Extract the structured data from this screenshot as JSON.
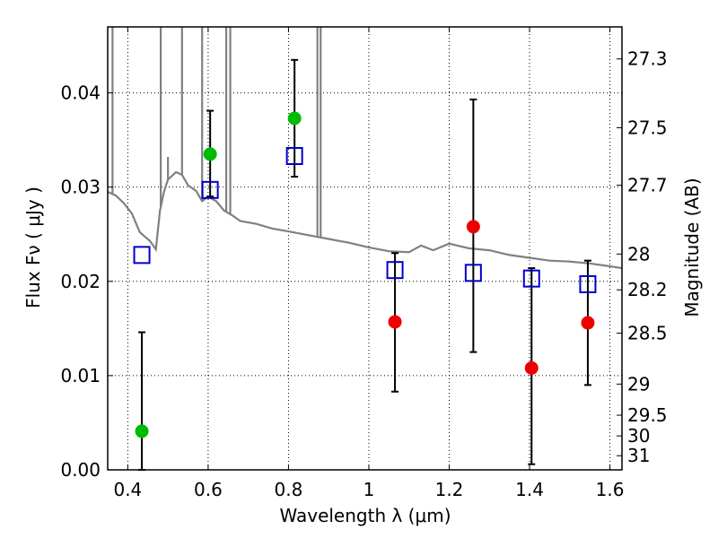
{
  "chart_data": {
    "type": "scatter",
    "xlabel": "Wavelength  λ (μm)",
    "ylabel": "Flux  Fν  ( μJy )",
    "ylabel_right": "Magnitude (AB)",
    "xlim": [
      0.35,
      1.63
    ],
    "ylim": [
      0.0,
      0.047
    ],
    "grid": true,
    "x_ticks": [
      0.4,
      0.6,
      0.8,
      1.0,
      1.2,
      1.4,
      1.6
    ],
    "x_tick_labels": [
      "0.4",
      "0.6",
      "0.8",
      "1",
      "1.2",
      "1.4",
      "1.6"
    ],
    "y_ticks": [
      0.0,
      0.01,
      0.02,
      0.03,
      0.04
    ],
    "y_tick_labels": [
      "0.00",
      "0.01",
      "0.02",
      "0.03",
      "0.04"
    ],
    "right_ticks": [
      {
        "label": "27.3",
        "flux": 0.0436
      },
      {
        "label": "27.5",
        "flux": 0.0363
      },
      {
        "label": "27.7",
        "flux": 0.0302
      },
      {
        "label": "28",
        "flux": 0.0229
      },
      {
        "label": "28.2",
        "flux": 0.0191
      },
      {
        "label": "28.5",
        "flux": 0.0145
      },
      {
        "label": "29",
        "flux": 0.0091
      },
      {
        "label": "29.5",
        "flux": 0.0058
      },
      {
        "label": "30",
        "flux": 0.0036
      },
      {
        "label": "31",
        "flux": 0.0015
      }
    ],
    "series": [
      {
        "marker": "open-square",
        "color": "#0000cc",
        "x": [
          0.435,
          0.605,
          0.815,
          1.065,
          1.26,
          1.405,
          1.545
        ],
        "y": [
          0.0228,
          0.0297,
          0.0333,
          0.0212,
          0.0209,
          0.0203,
          0.0197
        ]
      },
      {
        "marker": "filled-circle",
        "color": "#00bb00",
        "x": [
          0.435,
          0.605,
          0.815
        ],
        "y": [
          0.0041,
          0.0335,
          0.0373
        ]
      },
      {
        "marker": "filled-circle",
        "color": "#ee0000",
        "x": [
          1.065,
          1.26,
          1.405,
          1.545
        ],
        "y": [
          0.0157,
          0.0258,
          0.0108,
          0.0156
        ]
      }
    ],
    "error_bars": [
      {
        "x": 0.435,
        "low": 0.0,
        "high": 0.0146
      },
      {
        "x": 0.605,
        "low": 0.029,
        "high": 0.0381
      },
      {
        "x": 0.815,
        "low": 0.0311,
        "high": 0.0435
      },
      {
        "x": 1.065,
        "low": 0.0083,
        "high": 0.023
      },
      {
        "x": 1.26,
        "low": 0.0125,
        "high": 0.0393
      },
      {
        "x": 1.405,
        "low": 0.0006,
        "high": 0.0214
      },
      {
        "x": 1.545,
        "low": 0.009,
        "high": 0.0222
      }
    ],
    "model_spectrum": {
      "color": "#808080",
      "points": [
        [
          0.35,
          0.0295
        ],
        [
          0.37,
          0.0291
        ],
        [
          0.39,
          0.0283
        ],
        [
          0.41,
          0.0272
        ],
        [
          0.43,
          0.0252
        ],
        [
          0.455,
          0.0243
        ],
        [
          0.47,
          0.0234
        ],
        [
          0.48,
          0.0275
        ],
        [
          0.49,
          0.0295
        ],
        [
          0.5,
          0.0308
        ],
        [
          0.52,
          0.0316
        ],
        [
          0.535,
          0.0313
        ],
        [
          0.55,
          0.0302
        ],
        [
          0.57,
          0.0296
        ],
        [
          0.585,
          0.0285
        ],
        [
          0.6,
          0.029
        ],
        [
          0.62,
          0.0285
        ],
        [
          0.64,
          0.0275
        ],
        [
          0.66,
          0.027
        ],
        [
          0.68,
          0.0264
        ],
        [
          0.72,
          0.0261
        ],
        [
          0.76,
          0.0256
        ],
        [
          0.8,
          0.0253
        ],
        [
          0.85,
          0.0249
        ],
        [
          0.9,
          0.0245
        ],
        [
          0.95,
          0.0241
        ],
        [
          1.0,
          0.0236
        ],
        [
          1.05,
          0.0232
        ],
        [
          1.1,
          0.0231
        ],
        [
          1.13,
          0.0238
        ],
        [
          1.16,
          0.0233
        ],
        [
          1.2,
          0.024
        ],
        [
          1.25,
          0.0235
        ],
        [
          1.3,
          0.0233
        ],
        [
          1.35,
          0.0228
        ],
        [
          1.4,
          0.0225
        ],
        [
          1.45,
          0.0222
        ],
        [
          1.5,
          0.0221
        ],
        [
          1.55,
          0.0219
        ],
        [
          1.6,
          0.0216
        ],
        [
          1.63,
          0.0214
        ]
      ],
      "spikes": [
        {
          "x": 0.362,
          "top": 0.047
        },
        {
          "x": 0.482,
          "top": 0.047
        },
        {
          "x": 0.5,
          "top": 0.0332
        },
        {
          "x": 0.535,
          "top": 0.047
        },
        {
          "x": 0.585,
          "top": 0.047
        },
        {
          "x": 0.645,
          "top": 0.047
        },
        {
          "x": 0.655,
          "top": 0.047
        },
        {
          "x": 0.872,
          "top": 0.047
        },
        {
          "x": 0.88,
          "top": 0.047
        }
      ]
    }
  }
}
